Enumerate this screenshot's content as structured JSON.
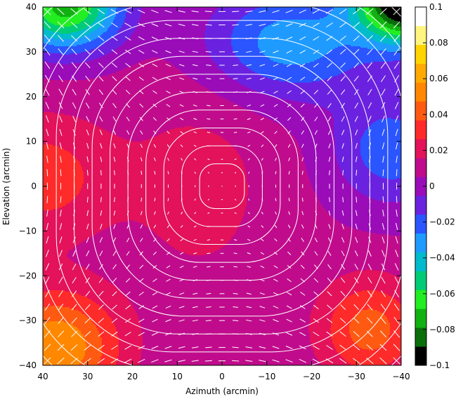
{
  "chart_data": {
    "type": "heatmap",
    "title": "",
    "xlabel": "Azimuth (arcmin)",
    "ylabel": "Elevation (arcmin)",
    "xlim": [
      40,
      -40
    ],
    "ylim": [
      -40,
      40
    ],
    "x_ticks": [
      40,
      30,
      20,
      10,
      0,
      -10,
      -20,
      -30,
      -40
    ],
    "x_tick_labels": [
      "40",
      "30",
      "20",
      "10",
      "0",
      "−10",
      "−20",
      "−30",
      "−40"
    ],
    "y_ticks": [
      -40,
      -30,
      -20,
      -10,
      0,
      10,
      20,
      30,
      40
    ],
    "y_tick_labels": [
      "−40",
      "−30",
      "−20",
      "−10",
      "0",
      "10",
      "20",
      "30",
      "40"
    ],
    "colorbar": {
      "range": [
        -0.1,
        0.1
      ],
      "ticks": [
        0.1,
        0.08,
        0.06,
        0.04,
        0.02,
        0,
        -0.02,
        -0.04,
        -0.06,
        -0.08,
        -0.1
      ],
      "tick_labels": [
        "0.1",
        "0.08",
        "0.06",
        "0.04",
        "0.02",
        "0",
        "−0.02",
        "−0.04",
        "−0.06",
        "−0.08",
        "−0.1"
      ],
      "levels": [
        {
          "value": -0.09,
          "color": "#000000"
        },
        {
          "value": -0.08,
          "color": "#0a6e0a"
        },
        {
          "value": -0.07,
          "color": "#11b111"
        },
        {
          "value": -0.06,
          "color": "#22ee22"
        },
        {
          "value": -0.05,
          "color": "#00cc77"
        },
        {
          "value": -0.04,
          "color": "#00bbcc"
        },
        {
          "value": -0.03,
          "color": "#1f9bff"
        },
        {
          "value": -0.02,
          "color": "#2a55ff"
        },
        {
          "value": -0.01,
          "color": "#6a22e0"
        },
        {
          "value": 0.0,
          "color": "#9a0cb8"
        },
        {
          "value": 0.01,
          "color": "#c00c8c"
        },
        {
          "value": 0.02,
          "color": "#e3125a"
        },
        {
          "value": 0.03,
          "color": "#ff2a2a"
        },
        {
          "value": 0.04,
          "color": "#ff5a12"
        },
        {
          "value": 0.05,
          "color": "#ff8800"
        },
        {
          "value": 0.06,
          "color": "#ffaa00"
        },
        {
          "value": 0.07,
          "color": "#ffd400"
        },
        {
          "value": 0.08,
          "color": "#fff580"
        },
        {
          "value": 0.09,
          "color": "#ffffff"
        }
      ]
    },
    "contour_levels_arcmin": [
      5,
      9,
      13,
      17,
      21,
      25,
      29,
      33,
      37,
      41,
      45,
      49
    ],
    "overlay": "polarization vectors",
    "grid": false
  }
}
